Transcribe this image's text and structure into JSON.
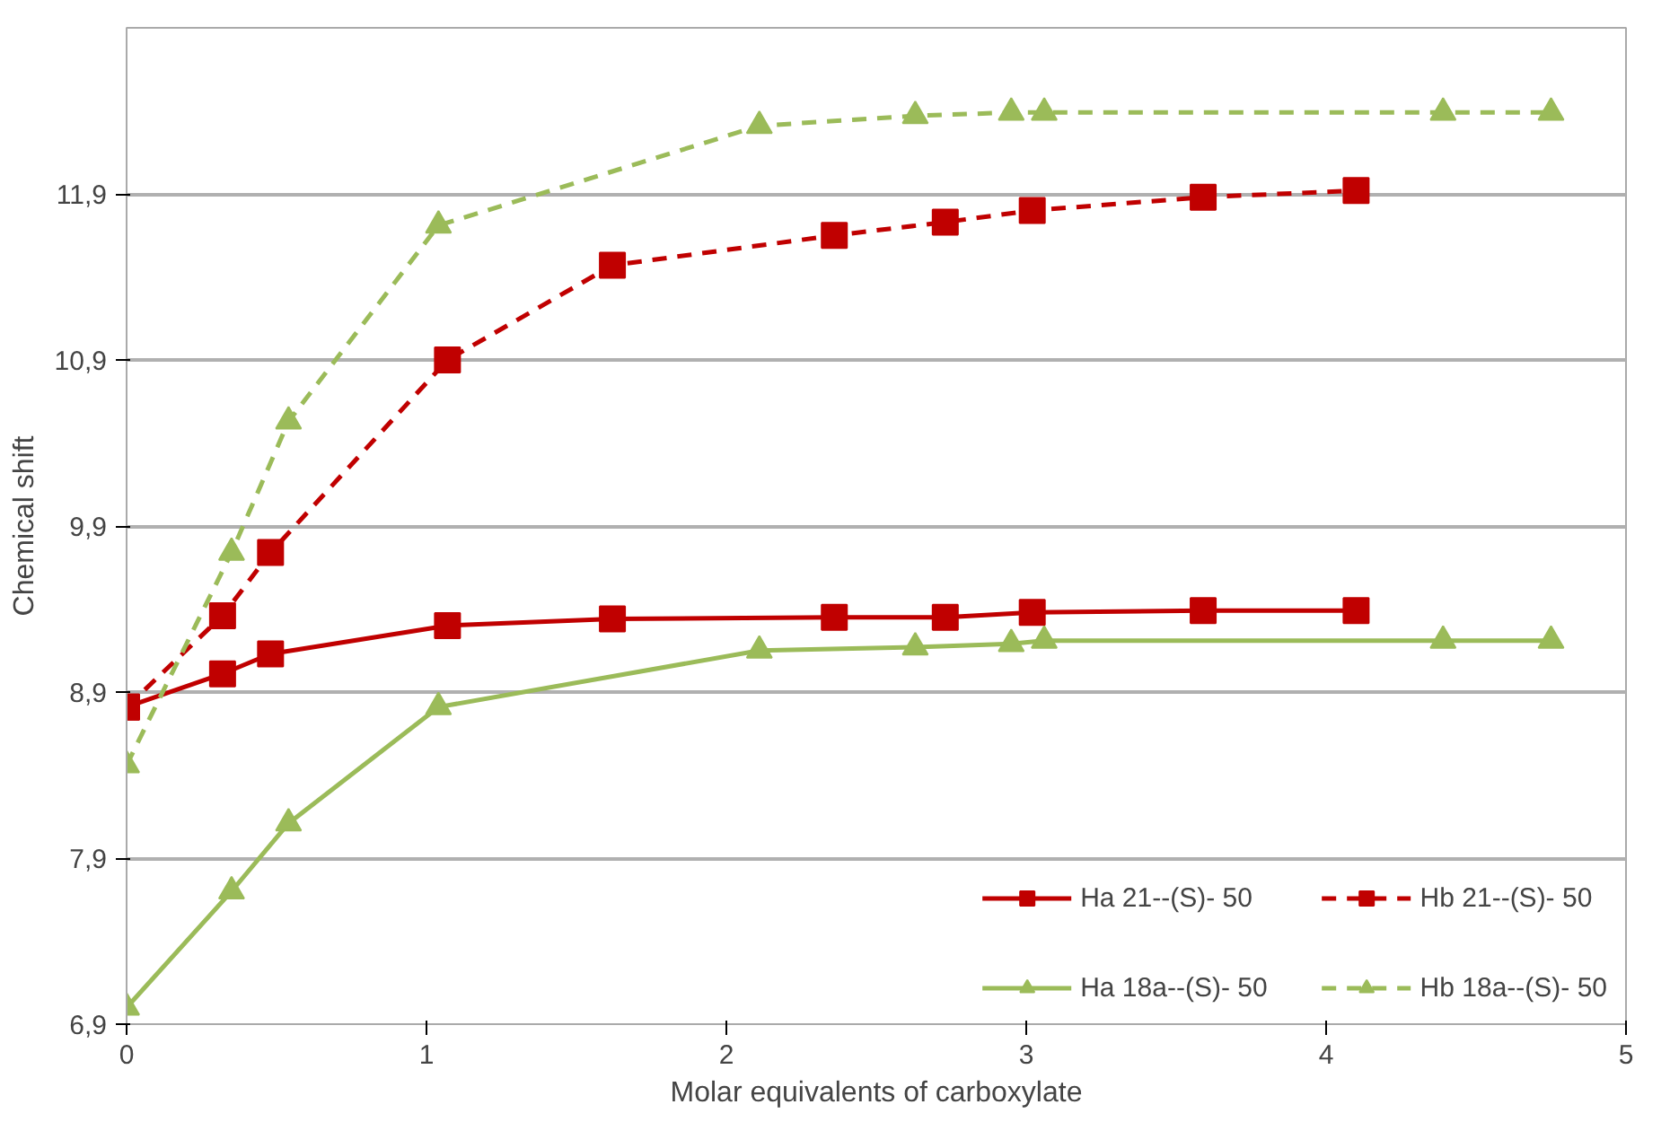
{
  "chart_data": {
    "type": "line",
    "xlabel": "Molar equivalents of carboxylate",
    "ylabel": "Chemical shift",
    "xlim": [
      0,
      5
    ],
    "xticks": [
      0,
      1,
      2,
      3,
      4,
      5
    ],
    "ylim": [
      6.9,
      12.9
    ],
    "yticks": [
      {
        "value": 6.9,
        "label": "6,9"
      },
      {
        "value": 7.9,
        "label": "7,9"
      },
      {
        "value": 8.9,
        "label": "8,9"
      },
      {
        "value": 9.9,
        "label": "9,9"
      },
      {
        "value": 10.9,
        "label": "10,9"
      },
      {
        "value": 11.9,
        "label": "11,9"
      }
    ],
    "grid": "y",
    "legend": "bottom right",
    "series": [
      {
        "name": "Ha 21--(S)- 50",
        "color": "#c00000",
        "marker": "square",
        "line_style": "solid",
        "x": [
          0,
          0.32,
          0.48,
          1.07,
          1.62,
          2.36,
          2.73,
          3.02,
          3.59,
          4.1
        ],
        "values": [
          8.81,
          9.01,
          9.13,
          9.3,
          9.34,
          9.35,
          9.35,
          9.38,
          9.39,
          9.39
        ]
      },
      {
        "name": "Ha 18a--(S)- 50",
        "color": "#9bbb59",
        "marker": "triangle",
        "line_style": "solid",
        "x": [
          0,
          0.35,
          0.54,
          1.04,
          2.11,
          2.63,
          2.95,
          3.06,
          4.39,
          4.75
        ],
        "values": [
          7.0,
          7.7,
          8.11,
          8.81,
          9.15,
          9.17,
          9.19,
          9.21,
          9.21,
          9.21
        ]
      },
      {
        "name": "Hb 21--(S)- 50",
        "color": "#c00000",
        "marker": "square",
        "line_style": "dashed",
        "x": [
          0,
          0.32,
          0.48,
          1.07,
          1.62,
          2.36,
          2.73,
          3.02,
          3.59,
          4.1
        ],
        "values": [
          8.81,
          9.36,
          9.74,
          10.9,
          11.47,
          11.65,
          11.73,
          11.8,
          11.88,
          11.92
        ]
      },
      {
        "name": "Hb 18a--(S)- 50",
        "color": "#9bbb59",
        "marker": "triangle",
        "line_style": "dashed",
        "x": [
          0,
          0.35,
          0.54,
          1.04,
          2.11,
          2.63,
          2.95,
          3.06,
          4.39,
          4.75
        ],
        "values": [
          8.46,
          9.74,
          10.53,
          11.71,
          12.31,
          12.37,
          12.39,
          12.39,
          12.39,
          12.39
        ]
      }
    ]
  }
}
